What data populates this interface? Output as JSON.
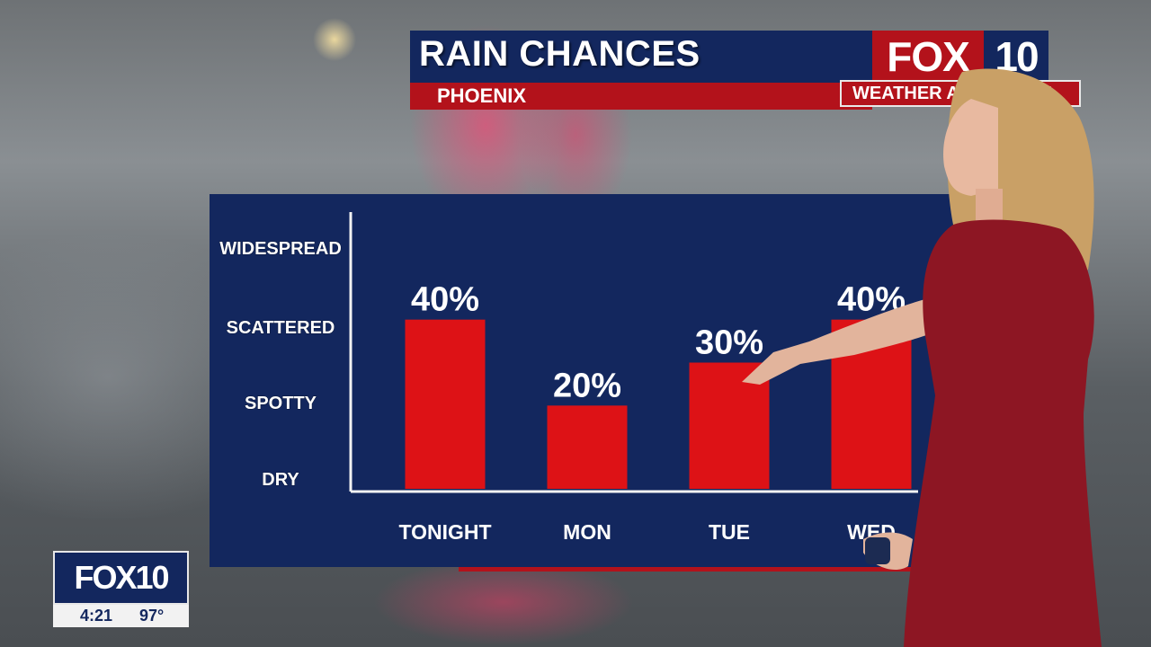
{
  "header": {
    "title": "RAIN CHANCES",
    "subtitle": "PHOENIX",
    "logo_fox": "FOX",
    "logo_num": "10",
    "brand_tag": "WEATHER AUTHORITY"
  },
  "bug": {
    "logo": "FOX10",
    "time": "4:21",
    "temp": "97°"
  },
  "colors": {
    "navy": "#13275e",
    "red": "#b3121b",
    "bar_red": "#dd1216"
  },
  "chart_data": {
    "type": "bar",
    "title": "RAIN CHANCES",
    "categories": [
      "TONIGHT",
      "MON",
      "TUE",
      "WED"
    ],
    "values": [
      40,
      20,
      30,
      40
    ],
    "value_labels": [
      "40%",
      "20%",
      "30%",
      "40%"
    ],
    "y_scale_labels": [
      "DRY",
      "SPOTTY",
      "SCATTERED",
      "WIDESPREAD"
    ],
    "ylim": [
      0,
      60
    ],
    "grid": false,
    "legend": "none"
  }
}
